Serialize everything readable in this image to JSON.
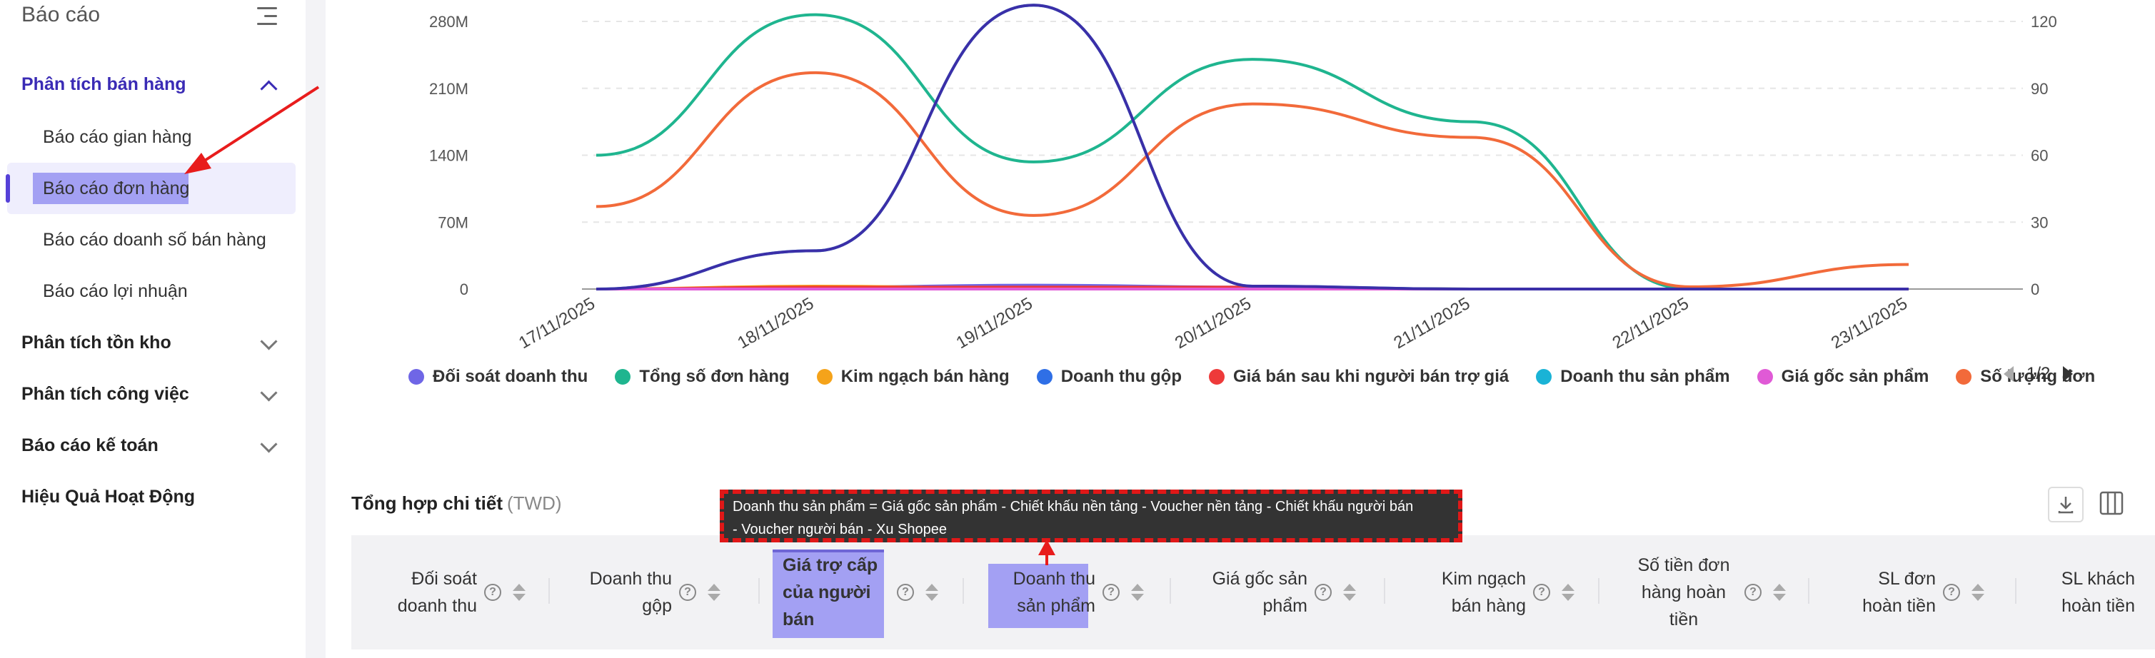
{
  "sidebar": {
    "title": "Báo cáo",
    "sections": [
      {
        "label": "Phân tích bán hàng",
        "expanded": true
      },
      {
        "label": "Phân tích tồn kho",
        "expanded": false
      },
      {
        "label": "Phân tích công việc",
        "expanded": false
      },
      {
        "label": "Báo cáo kế toán",
        "expanded": false
      },
      {
        "label": "Hiệu Quả Hoạt Động",
        "expanded": false
      }
    ],
    "items": [
      {
        "label": "Báo cáo gian hàng"
      },
      {
        "label": "Báo cáo đơn hàng",
        "active": true
      },
      {
        "label": "Báo cáo doanh số bán hàng"
      },
      {
        "label": "Báo cáo lợi nhuận"
      }
    ]
  },
  "chart_data": {
    "type": "line",
    "x": [
      "17/11/2025",
      "18/11/2025",
      "19/11/2025",
      "20/11/2025",
      "21/11/2025",
      "22/11/2025",
      "23/11/2025"
    ],
    "y_left_ticks": [
      "0",
      "70M",
      "140M",
      "210M",
      "280M"
    ],
    "y_right_ticks": [
      "0",
      "30",
      "60",
      "90",
      "120"
    ],
    "y_left_range": [
      0,
      280000000
    ],
    "y_right_range": [
      0,
      120
    ],
    "grid": true,
    "series": [
      {
        "name": "Đối soát doanh thu",
        "color": "#6f66e6",
        "axis": "left",
        "values": [
          0,
          2000000,
          4000000,
          2000000,
          0,
          0,
          0
        ]
      },
      {
        "name": "Tổng số đơn hàng",
        "color": "#1fb58f",
        "axis": "right",
        "values": [
          60,
          123,
          57,
          103,
          75,
          0,
          0
        ]
      },
      {
        "name": "Kim ngạch bán hàng",
        "color": "#f5a31a",
        "axis": "left",
        "values": [
          0,
          3000000,
          1000000,
          1000000,
          0,
          0,
          0
        ]
      },
      {
        "name": "Doanh thu gộp",
        "color": "#2f6fe6",
        "axis": "left",
        "values": [
          0,
          0,
          0,
          0,
          0,
          0,
          0
        ]
      },
      {
        "name": "Giá bán sau khi người bán trợ giá",
        "color": "#ee3a3a",
        "axis": "left",
        "values": [
          0,
          2000000,
          2000000,
          2000000,
          0,
          0,
          0
        ]
      },
      {
        "name": "Doanh thu sản phẩm",
        "color": "#1ab3d6",
        "axis": "left",
        "values": [
          0,
          40000000,
          297000000,
          3000000,
          0,
          0,
          0
        ]
      },
      {
        "name": "Giá gốc sản phẩm",
        "color": "#e05ad6",
        "axis": "left",
        "values": [
          0,
          0,
          0,
          0,
          0,
          0,
          0
        ]
      },
      {
        "name": "Số lượng đơn",
        "color": "#f26a3a",
        "axis": "right",
        "values": [
          37,
          97,
          33,
          83,
          68,
          1,
          11
        ]
      },
      {
        "name": "",
        "color": "#3b2fa8",
        "axis": "left",
        "values": [
          0,
          40000000,
          297000000,
          3000000,
          0,
          0,
          0
        ]
      }
    ]
  },
  "legend": {
    "page": "1/2",
    "items": [
      {
        "label": "Đối soát doanh thu",
        "color": "#6f66e6"
      },
      {
        "label": "Tổng số đơn hàng",
        "color": "#1fb58f"
      },
      {
        "label": "Kim ngạch bán hàng",
        "color": "#f5a31a"
      },
      {
        "label": "Doanh thu gộp",
        "color": "#2f6fe6"
      },
      {
        "label": "Giá bán sau khi người bán trợ giá",
        "color": "#ee3a3a"
      },
      {
        "label": "Doanh thu sản phẩm",
        "color": "#1ab3d6"
      },
      {
        "label": "Giá gốc sản phẩm",
        "color": "#e05ad6"
      },
      {
        "label": "Số lượng đơn",
        "color": "#f26a3a"
      }
    ]
  },
  "detail": {
    "title": "Tổng hợp chi tiết",
    "unit": "(TWD)",
    "tooltip_line1": "Doanh thu sản phẩm = Giá gốc sản phẩm - Chiết khấu nền tảng - Voucher nền tảng - Chiết khấu người bán",
    "tooltip_line2": "- Voucher người bán - Xu Shopee",
    "columns": [
      {
        "label": "Đối soát doanh thu"
      },
      {
        "label": "Doanh thu gộp"
      },
      {
        "label": "Giá trợ cấp của người bán"
      },
      {
        "label": "Doanh thu sản phẩm"
      },
      {
        "label": "Giá gốc sản phẩm"
      },
      {
        "label": "Kim ngạch bán hàng"
      },
      {
        "label": "Số tiền đơn hàng hoàn tiền"
      },
      {
        "label": "SL đơn hoàn tiền"
      },
      {
        "label": "SL khách hoàn tiền"
      }
    ]
  }
}
